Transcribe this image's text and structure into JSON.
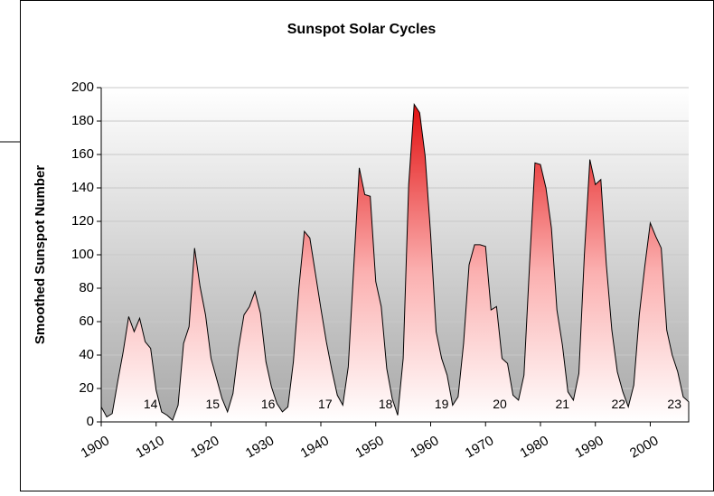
{
  "chart_data": {
    "type": "area",
    "title": "Sunspot Solar Cycles",
    "y_label": "Smoothed Sunspot Number",
    "x": [
      1900,
      1901,
      1902,
      1903,
      1904,
      1905,
      1906,
      1907,
      1908,
      1909,
      1910,
      1911,
      1912,
      1913,
      1914,
      1915,
      1916,
      1917,
      1918,
      1919,
      1920,
      1921,
      1922,
      1923,
      1924,
      1925,
      1926,
      1927,
      1928,
      1929,
      1930,
      1931,
      1932,
      1933,
      1934,
      1935,
      1936,
      1937,
      1938,
      1939,
      1940,
      1941,
      1942,
      1943,
      1944,
      1945,
      1946,
      1947,
      1948,
      1949,
      1950,
      1951,
      1952,
      1953,
      1954,
      1955,
      1956,
      1957,
      1958,
      1959,
      1960,
      1961,
      1962,
      1963,
      1964,
      1965,
      1966,
      1967,
      1968,
      1969,
      1970,
      1971,
      1972,
      1973,
      1974,
      1975,
      1976,
      1977,
      1978,
      1979,
      1980,
      1981,
      1982,
      1983,
      1984,
      1985,
      1986,
      1987,
      1988,
      1989,
      1990,
      1991,
      1992,
      1993,
      1994,
      1995,
      1996,
      1997,
      1998,
      1999,
      2000,
      2001,
      2002,
      2003,
      2004,
      2005,
      2006,
      2007
    ],
    "values": [
      9,
      3,
      5,
      24,
      42,
      63,
      54,
      62,
      48,
      44,
      19,
      6,
      4,
      1,
      10,
      47,
      57,
      104,
      81,
      64,
      38,
      26,
      14,
      6,
      17,
      44,
      64,
      69,
      78,
      65,
      36,
      21,
      11,
      6,
      9,
      36,
      80,
      114,
      110,
      89,
      68,
      48,
      31,
      16,
      10,
      33,
      93,
      152,
      136,
      135,
      84,
      69,
      32,
      14,
      4,
      38,
      142,
      190,
      185,
      159,
      112,
      54,
      38,
      28,
      10,
      15,
      47,
      94,
      106,
      106,
      105,
      67,
      69,
      38,
      35,
      16,
      13,
      28,
      93,
      155,
      154,
      140,
      116,
      67,
      46,
      18,
      13,
      29,
      100,
      157,
      142,
      145,
      94,
      55,
      30,
      18,
      9,
      22,
      64,
      93,
      119,
      111,
      104,
      55,
      40,
      30,
      15,
      12
    ],
    "color": "#e00000",
    "xlim": [
      1900,
      2007
    ],
    "xticks": [
      1900,
      1910,
      1920,
      1930,
      1940,
      1950,
      1960,
      1970,
      1980,
      1990,
      2000
    ],
    "ylim": [
      0,
      200
    ],
    "yticks": [
      0,
      20,
      40,
      60,
      80,
      100,
      120,
      140,
      160,
      180,
      200
    ],
    "grid": true,
    "annotations": [
      {
        "text": "14",
        "x": 1909,
        "y": 10
      },
      {
        "text": "15",
        "x": 1920.3,
        "y": 10
      },
      {
        "text": "16",
        "x": 1930.4,
        "y": 10
      },
      {
        "text": "17",
        "x": 1940.8,
        "y": 10
      },
      {
        "text": "18",
        "x": 1951.8,
        "y": 10
      },
      {
        "text": "19",
        "x": 1962,
        "y": 10
      },
      {
        "text": "20",
        "x": 1972.6,
        "y": 10
      },
      {
        "text": "21",
        "x": 1984,
        "y": 10
      },
      {
        "text": "22",
        "x": 1994.2,
        "y": 10
      },
      {
        "text": "23",
        "x": 2004.4,
        "y": 10
      }
    ]
  }
}
